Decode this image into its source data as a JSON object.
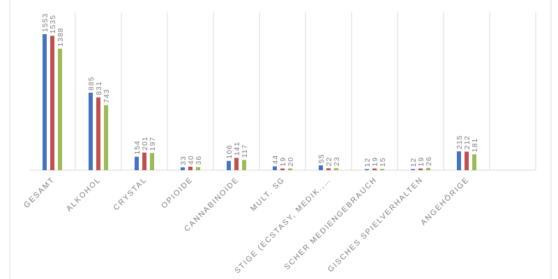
{
  "chart_data": {
    "type": "bar",
    "categories": [
      "GESAMT",
      "ALKOHOL",
      "CRYSTAL",
      "OPIOIDE",
      "CANNABINOIDE",
      "MULT. SG",
      "STIGE (ECSTASY, MEDIK.,…",
      "SCHER MEDIENGEBRAUCH",
      "GISCHES SPIELVERHALTEN",
      "ANGEHÖRIGE",
      null
    ],
    "series": [
      {
        "color": "#4472c4",
        "values": [
          1553,
          885,
          154,
          33,
          106,
          44,
          55,
          12,
          12,
          215,
          null
        ]
      },
      {
        "color": "#c0504d",
        "values": [
          1535,
          831,
          201,
          40,
          141,
          19,
          22,
          19,
          19,
          212,
          null
        ]
      },
      {
        "color": "#9bbb59",
        "values": [
          1388,
          743,
          197,
          36,
          117,
          20,
          23,
          15,
          26,
          181,
          null
        ]
      }
    ],
    "ylim": [
      0,
      1800
    ],
    "grid": true,
    "data_labels": true
  }
}
